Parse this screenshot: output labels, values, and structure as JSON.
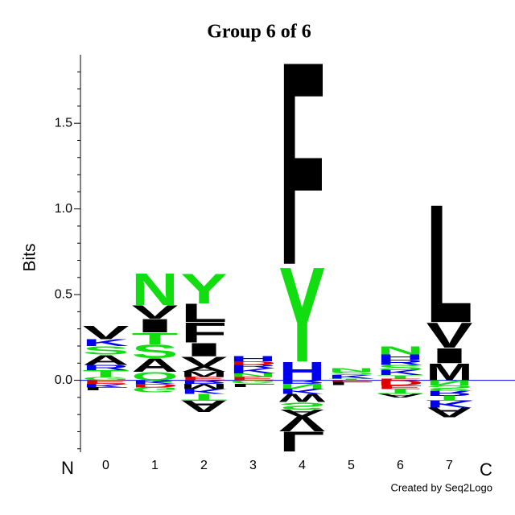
{
  "chart_data": {
    "type": "logo",
    "title": "Group 6 of 6",
    "y_label": "Bits",
    "start_label": "N",
    "end_label": "C",
    "credit": "Created by Seq2Logo",
    "categories": [
      "0",
      "1",
      "2",
      "3",
      "4",
      "5",
      "6",
      "7"
    ],
    "letter_colors": {
      "A": "#000000",
      "V": "#000000",
      "I": "#000000",
      "L": "#000000",
      "M": "#000000",
      "F": "#000000",
      "W": "#000000",
      "P": "#000000",
      "K": "#0000ee",
      "R": "#0000ee",
      "H": "#0000ee",
      "D": "#dd0000",
      "E": "#dd0000",
      "N": "#11dd11",
      "Y": "#11dd11",
      "S": "#11dd11",
      "T": "#11dd11",
      "Q": "#11dd11",
      "G": "#11dd11",
      "C": "#11dd11"
    },
    "stacks": [
      [
        {
          "letter": "G",
          "value": 0.02
        },
        {
          "letter": "T",
          "value": 0.04
        },
        {
          "letter": "R",
          "value": 0.03
        },
        {
          "letter": "A",
          "value": 0.06
        },
        {
          "letter": "S",
          "value": 0.05
        },
        {
          "letter": "K",
          "value": 0.04
        },
        {
          "letter": "V",
          "value": 0.08
        },
        {
          "letter": "E",
          "value": -0.02
        },
        {
          "letter": "K",
          "value": -0.02
        },
        {
          "letter": "L",
          "value": -0.02
        }
      ],
      [
        {
          "letter": "Q",
          "value": 0.05
        },
        {
          "letter": "A",
          "value": 0.08
        },
        {
          "letter": "S",
          "value": 0.08
        },
        {
          "letter": "T",
          "value": 0.07
        },
        {
          "letter": "I",
          "value": 0.08
        },
        {
          "letter": "V",
          "value": 0.08
        },
        {
          "letter": "N",
          "value": 0.19
        },
        {
          "letter": "K",
          "value": -0.02
        },
        {
          "letter": "D",
          "value": -0.02
        },
        {
          "letter": "G",
          "value": -0.03
        }
      ],
      [
        {
          "letter": "E",
          "value": 0.02
        },
        {
          "letter": "M",
          "value": 0.03
        },
        {
          "letter": "A",
          "value": 0.03
        },
        {
          "letter": "V",
          "value": 0.06
        },
        {
          "letter": "I",
          "value": 0.08
        },
        {
          "letter": "F",
          "value": 0.12
        },
        {
          "letter": "L",
          "value": 0.11
        },
        {
          "letter": "Y",
          "value": 0.18
        },
        {
          "letter": "R",
          "value": -0.02
        },
        {
          "letter": "M",
          "value": -0.03
        },
        {
          "letter": "K",
          "value": -0.03
        },
        {
          "letter": "T",
          "value": -0.04
        },
        {
          "letter": "A",
          "value": -0.07
        }
      ],
      [
        {
          "letter": "E",
          "value": 0.02
        },
        {
          "letter": "N",
          "value": 0.02
        },
        {
          "letter": "K",
          "value": 0.03
        },
        {
          "letter": "R",
          "value": 0.02
        },
        {
          "letter": "D",
          "value": 0.02
        },
        {
          "letter": "H",
          "value": 0.03
        },
        {
          "letter": "G",
          "value": -0.02
        },
        {
          "letter": "L",
          "value": -0.02
        }
      ],
      [
        {
          "letter": "H",
          "value": 0.11
        },
        {
          "letter": "Y",
          "value": 0.57
        },
        {
          "letter": "F",
          "value": 1.22
        },
        {
          "letter": "R",
          "value": -0.02
        },
        {
          "letter": "N",
          "value": -0.03
        },
        {
          "letter": "K",
          "value": -0.03
        },
        {
          "letter": "W",
          "value": -0.05
        },
        {
          "letter": "S",
          "value": -0.04
        },
        {
          "letter": "A",
          "value": -0.04
        },
        {
          "letter": "V",
          "value": -0.09
        },
        {
          "letter": "L",
          "value": -0.12
        }
      ],
      [
        {
          "letter": "T",
          "value": 0.01
        },
        {
          "letter": "K",
          "value": 0.02
        },
        {
          "letter": "S",
          "value": 0.02
        },
        {
          "letter": "N",
          "value": 0.02
        },
        {
          "letter": "E",
          "value": -0.01
        },
        {
          "letter": "L",
          "value": -0.02
        }
      ],
      [
        {
          "letter": "E",
          "value": 0.01
        },
        {
          "letter": "T",
          "value": 0.02
        },
        {
          "letter": "K",
          "value": 0.03
        },
        {
          "letter": "S",
          "value": 0.03
        },
        {
          "letter": "R",
          "value": 0.03
        },
        {
          "letter": "H",
          "value": 0.03
        },
        {
          "letter": "N",
          "value": 0.05
        },
        {
          "letter": "D",
          "value": -0.03
        },
        {
          "letter": "E",
          "value": -0.02
        },
        {
          "letter": "T",
          "value": -0.03
        },
        {
          "letter": "A",
          "value": -0.02
        }
      ],
      [
        {
          "letter": "M",
          "value": 0.1
        },
        {
          "letter": "I",
          "value": 0.09
        },
        {
          "letter": "V",
          "value": 0.15
        },
        {
          "letter": "L",
          "value": 0.71
        },
        {
          "letter": "N",
          "value": -0.03
        },
        {
          "letter": "S",
          "value": -0.03
        },
        {
          "letter": "R",
          "value": -0.03
        },
        {
          "letter": "T",
          "value": -0.03
        },
        {
          "letter": "K",
          "value": -0.04
        },
        {
          "letter": "A",
          "value": -0.06
        }
      ]
    ],
    "ylim": [
      -0.42,
      1.9
    ],
    "yticks": [
      {
        "value": 0,
        "label": "0.0"
      },
      {
        "value": 0.5,
        "label": "0.5"
      },
      {
        "value": 1,
        "label": "1.0"
      },
      {
        "value": 1.5,
        "label": "1.5"
      }
    ],
    "minor_yticks": [
      -0.4,
      -0.3,
      -0.2,
      -0.1,
      0.1,
      0.2,
      0.3,
      0.4,
      0.6,
      0.7,
      0.8,
      0.9,
      1.1,
      1.2,
      1.3,
      1.4,
      1.6,
      1.7,
      1.8
    ],
    "zero_line_color": "#0000ee"
  }
}
